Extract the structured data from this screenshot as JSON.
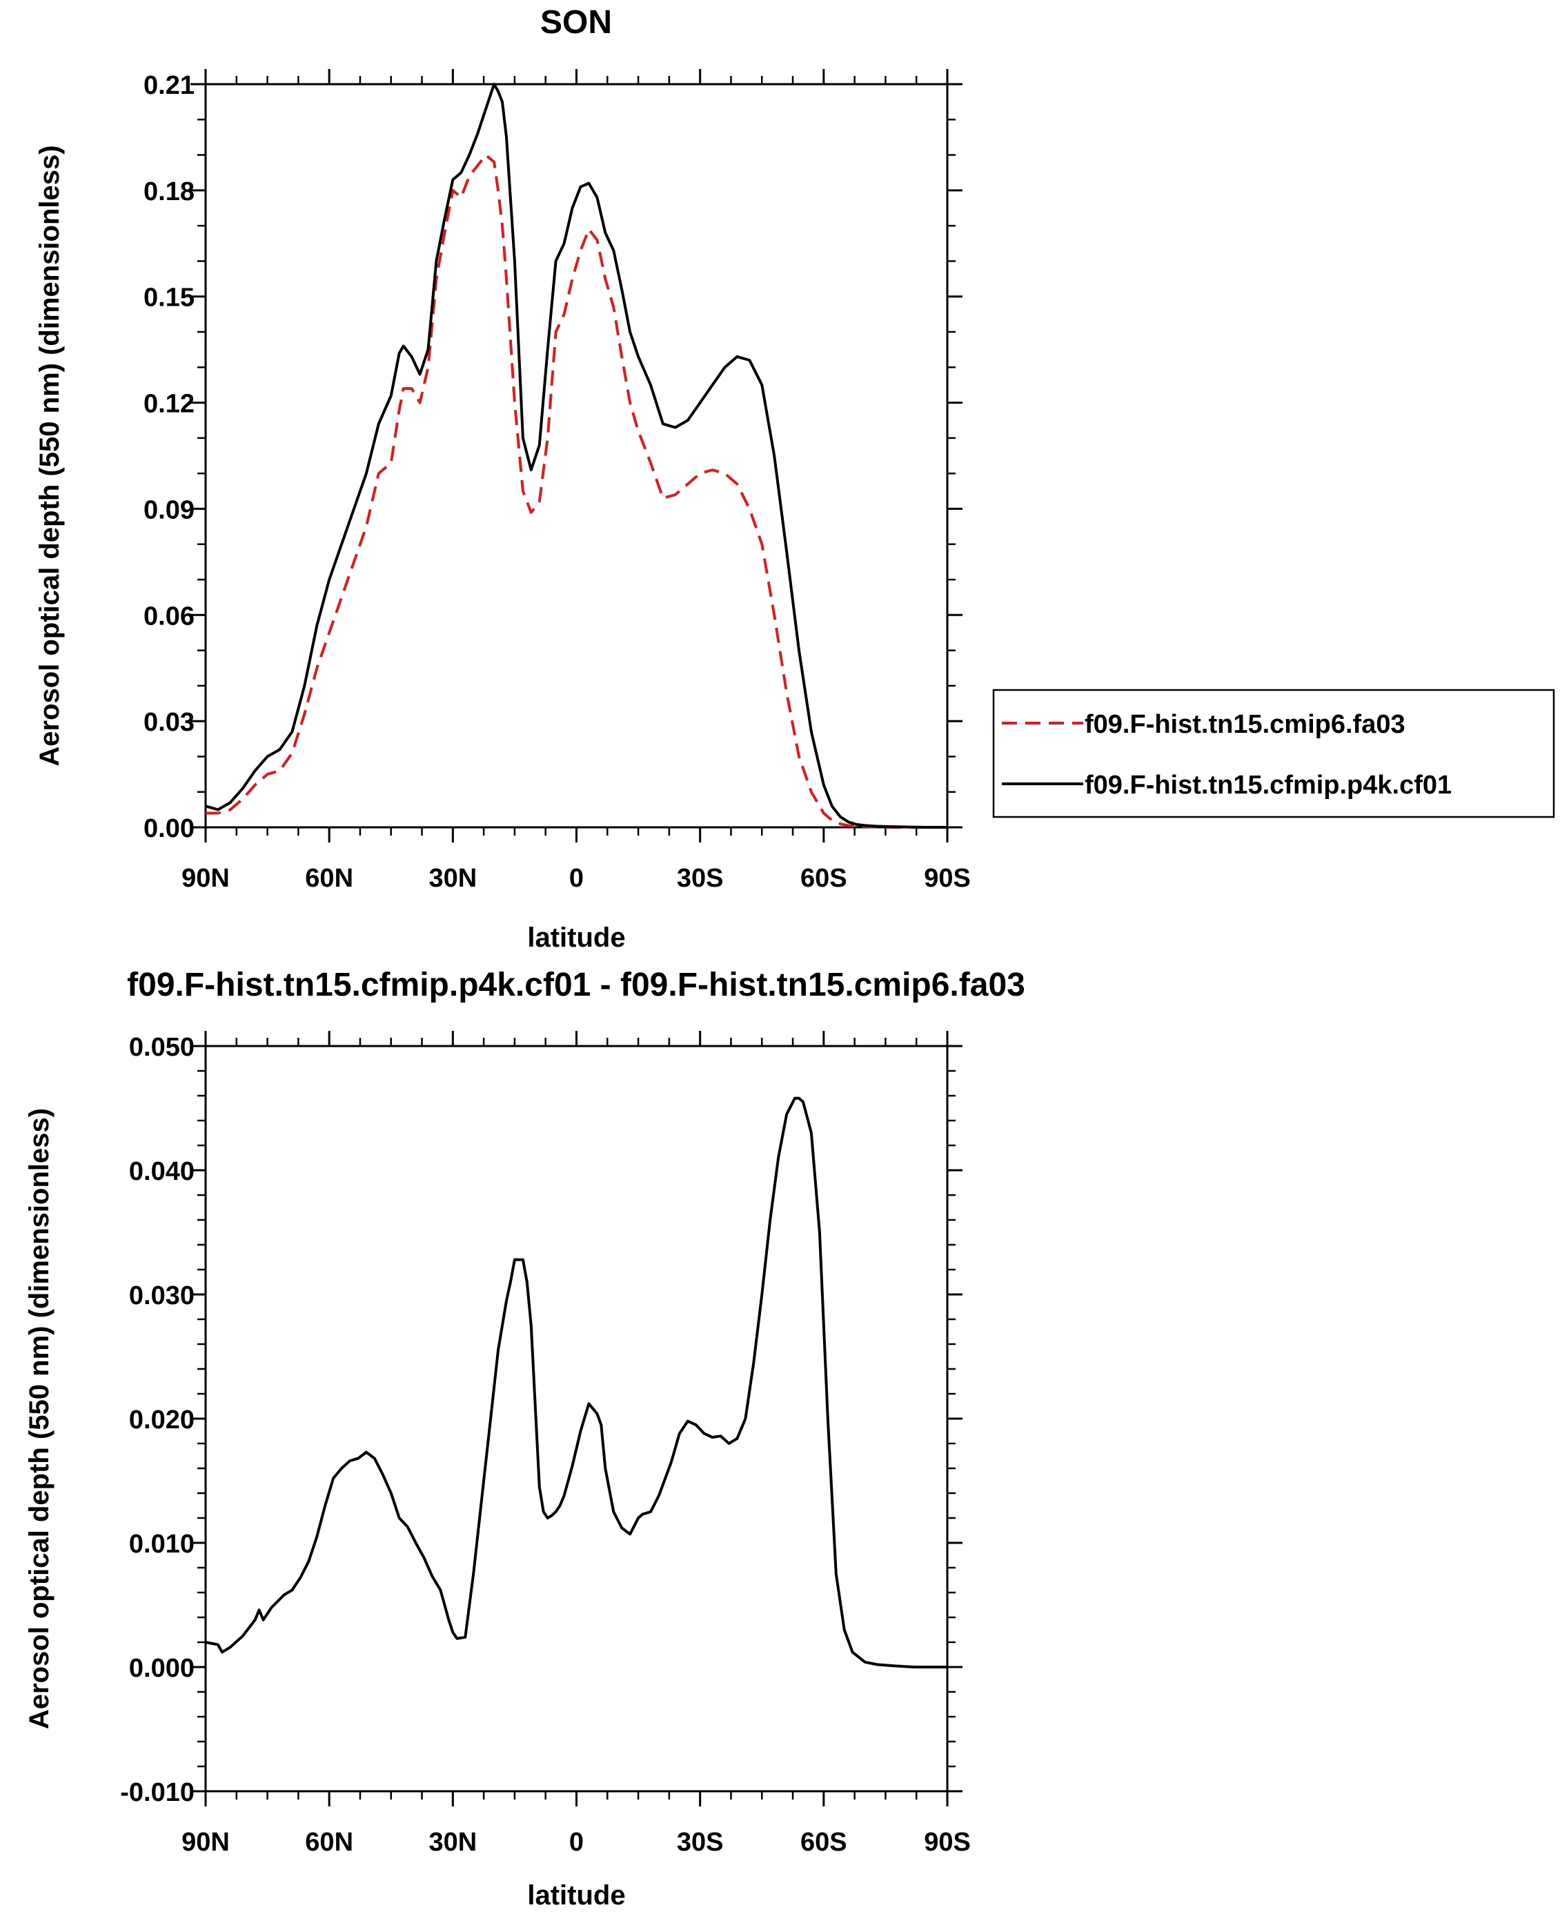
{
  "colors": {
    "control": "#e0191e",
    "experiment": "#000000"
  },
  "chart_data": [
    {
      "type": "line",
      "title": "SON",
      "xlabel": "latitude",
      "ylabel": "Aerosol optical depth (550 nm) (dimensionless)",
      "x_unit": "degrees latitude (positive = N, negative = S)",
      "xlim": [
        90,
        -90
      ],
      "ylim": [
        0,
        0.21
      ],
      "x_ticks": [
        90,
        60,
        30,
        0,
        -30,
        -60,
        -90
      ],
      "x_tick_labels": [
        "90N",
        "60N",
        "30N",
        "0",
        "30S",
        "60S",
        "90S"
      ],
      "y_ticks": [
        0,
        0.03,
        0.06,
        0.09,
        0.12,
        0.15,
        0.18,
        0.21
      ],
      "y_tick_labels": [
        "0.00",
        "0.03",
        "0.06",
        "0.09",
        "0.12",
        "0.15",
        "0.18",
        "0.21"
      ],
      "legend_position": "right",
      "grid": false,
      "series": [
        {
          "name": "f09.F-hist.tn15.cmip6.fa03",
          "style": "dashed",
          "color": "#e0191e",
          "x": [
            90,
            87,
            84,
            81,
            78,
            75,
            72,
            69,
            66,
            63,
            60,
            57,
            54,
            51,
            48,
            45,
            43,
            42,
            40,
            38,
            36,
            34,
            32,
            30,
            28,
            26,
            24,
            22,
            20,
            19,
            18,
            17,
            15,
            13,
            11,
            9,
            7,
            5,
            3,
            1,
            -1,
            -3,
            -5,
            -7,
            -9,
            -11,
            -13,
            -15,
            -18,
            -21,
            -24,
            -27,
            -30,
            -33,
            -36,
            -39,
            -42,
            -45,
            -48,
            -51,
            -54,
            -57,
            -60,
            -62,
            -64,
            -66,
            -68,
            -70,
            -73,
            -76,
            -80,
            -85,
            -90
          ],
          "y": [
            0.004,
            0.004,
            0.005,
            0.008,
            0.012,
            0.015,
            0.016,
            0.021,
            0.032,
            0.045,
            0.055,
            0.065,
            0.075,
            0.085,
            0.1,
            0.103,
            0.118,
            0.124,
            0.124,
            0.12,
            0.13,
            0.155,
            0.168,
            0.18,
            0.178,
            0.184,
            0.187,
            0.19,
            0.188,
            0.18,
            0.17,
            0.155,
            0.12,
            0.095,
            0.089,
            0.092,
            0.11,
            0.14,
            0.145,
            0.155,
            0.163,
            0.169,
            0.166,
            0.155,
            0.147,
            0.133,
            0.12,
            0.112,
            0.103,
            0.093,
            0.094,
            0.097,
            0.1,
            0.101,
            0.1,
            0.097,
            0.09,
            0.08,
            0.06,
            0.038,
            0.02,
            0.01,
            0.004,
            0.002,
            0.001,
            0.0005,
            0.0003,
            0.0002,
            0.0001,
            0,
            0,
            0,
            0
          ]
        },
        {
          "name": "f09.F-hist.tn15.cfmip.p4k.cf01",
          "style": "solid",
          "color": "#000000",
          "x": [
            90,
            87,
            84,
            81,
            78,
            75,
            72,
            69,
            66,
            63,
            60,
            57,
            54,
            51,
            48,
            45,
            43,
            42,
            40,
            38,
            36,
            34,
            32,
            30,
            28,
            26,
            24,
            22,
            20,
            19,
            18,
            17,
            15,
            13,
            11,
            9,
            7,
            5,
            3,
            1,
            -1,
            -3,
            -5,
            -7,
            -9,
            -11,
            -13,
            -15,
            -18,
            -21,
            -24,
            -27,
            -30,
            -33,
            -36,
            -39,
            -42,
            -45,
            -48,
            -51,
            -54,
            -57,
            -60,
            -62,
            -64,
            -66,
            -68,
            -70,
            -73,
            -76,
            -80,
            -85,
            -90
          ],
          "y": [
            0.006,
            0.005,
            0.007,
            0.011,
            0.016,
            0.02,
            0.022,
            0.027,
            0.04,
            0.057,
            0.07,
            0.08,
            0.09,
            0.1,
            0.114,
            0.122,
            0.134,
            0.136,
            0.133,
            0.128,
            0.135,
            0.16,
            0.172,
            0.183,
            0.185,
            0.19,
            0.196,
            0.203,
            0.21,
            0.208,
            0.205,
            0.195,
            0.16,
            0.11,
            0.101,
            0.108,
            0.135,
            0.16,
            0.165,
            0.175,
            0.181,
            0.182,
            0.178,
            0.168,
            0.163,
            0.152,
            0.14,
            0.133,
            0.125,
            0.114,
            0.113,
            0.115,
            0.12,
            0.125,
            0.13,
            0.133,
            0.132,
            0.125,
            0.105,
            0.078,
            0.05,
            0.027,
            0.012,
            0.006,
            0.003,
            0.0015,
            0.0008,
            0.0005,
            0.0003,
            0.0002,
            0.0001,
            0,
            0
          ]
        }
      ]
    },
    {
      "type": "line",
      "title": "f09.F-hist.tn15.cfmip.p4k.cf01 - f09.F-hist.tn15.cmip6.fa03",
      "xlabel": "latitude",
      "ylabel": "Aerosol optical depth (550 nm) (dimensionless)",
      "x_unit": "degrees latitude (positive = N, negative = S)",
      "xlim": [
        90,
        -90
      ],
      "ylim": [
        -0.01,
        0.05
      ],
      "x_ticks": [
        90,
        60,
        30,
        0,
        -30,
        -60,
        -90
      ],
      "x_tick_labels": [
        "90N",
        "60N",
        "30N",
        "0",
        "30S",
        "60S",
        "90S"
      ],
      "y_ticks": [
        -0.01,
        0,
        0.01,
        0.02,
        0.03,
        0.04,
        0.05
      ],
      "y_tick_labels": [
        "-0.010",
        "0.000",
        "0.010",
        "0.020",
        "0.030",
        "0.040",
        "0.050"
      ],
      "grid": false,
      "series": [
        {
          "style": "solid",
          "color": "#000000",
          "x": [
            90,
            87,
            86,
            84,
            81,
            78,
            77,
            76,
            74,
            71,
            69,
            67,
            65,
            63,
            61,
            59,
            57,
            55,
            53,
            51,
            49,
            47,
            45,
            43,
            41,
            39,
            37,
            35,
            33,
            31,
            30,
            29,
            27,
            25,
            23,
            21,
            19,
            17,
            16,
            15,
            13,
            12,
            11,
            9,
            8,
            7,
            6,
            5,
            4,
            3,
            1,
            -1,
            -3,
            -5,
            -6,
            -7,
            -9,
            -11,
            -13,
            -15,
            -16,
            -18,
            -20,
            -23,
            -25,
            -27,
            -29,
            -31,
            -33,
            -35,
            -37,
            -39,
            -41,
            -43,
            -45,
            -47,
            -49,
            -51,
            -53,
            -54,
            -55,
            -57,
            -59,
            -61,
            -63,
            -65,
            -67,
            -70,
            -73,
            -77,
            -82,
            -90
          ],
          "y": [
            0.002,
            0.0018,
            0.0012,
            0.0016,
            0.0025,
            0.0038,
            0.0046,
            0.0038,
            0.0048,
            0.0058,
            0.0062,
            0.0072,
            0.0085,
            0.0105,
            0.013,
            0.0152,
            0.016,
            0.0166,
            0.0168,
            0.0173,
            0.0168,
            0.0155,
            0.014,
            0.012,
            0.0113,
            0.01,
            0.0088,
            0.0073,
            0.0062,
            0.0038,
            0.0028,
            0.0023,
            0.0024,
            0.0075,
            0.0135,
            0.0195,
            0.0255,
            0.0295,
            0.031,
            0.0328,
            0.0328,
            0.031,
            0.0275,
            0.0145,
            0.0125,
            0.012,
            0.0122,
            0.0125,
            0.013,
            0.0138,
            0.0162,
            0.019,
            0.0212,
            0.0204,
            0.0195,
            0.016,
            0.0125,
            0.0112,
            0.0107,
            0.012,
            0.0123,
            0.0125,
            0.0138,
            0.0165,
            0.0188,
            0.0198,
            0.0195,
            0.0188,
            0.0185,
            0.0186,
            0.018,
            0.0184,
            0.02,
            0.0245,
            0.03,
            0.036,
            0.041,
            0.0445,
            0.0458,
            0.0458,
            0.0455,
            0.043,
            0.035,
            0.02,
            0.0075,
            0.003,
            0.0012,
            0.0004,
            0.0002,
            0.0001,
            0,
            0
          ]
        }
      ]
    }
  ]
}
